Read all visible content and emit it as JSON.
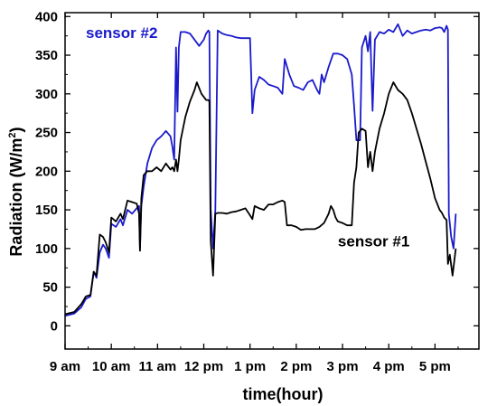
{
  "chart_data": {
    "type": "line",
    "xlabel": "time(hour)",
    "ylabel": "Radiation (W/m",
    "ylabel_sup": "2",
    "ylabel_suffix": ")",
    "xlim": [
      9.0,
      17.95
    ],
    "ylim": [
      -30,
      405
    ],
    "x_ticks": [
      {
        "value": 9,
        "label": "9 am"
      },
      {
        "value": 10,
        "label": "10 am"
      },
      {
        "value": 11,
        "label": "11 am"
      },
      {
        "value": 12,
        "label": "12 pm"
      },
      {
        "value": 13,
        "label": "1 pm"
      },
      {
        "value": 14,
        "label": "2 pm"
      },
      {
        "value": 15,
        "label": "3 pm"
      },
      {
        "value": 16,
        "label": "4 pm"
      },
      {
        "value": 17,
        "label": "5 pm"
      }
    ],
    "y_ticks": [
      0,
      50,
      100,
      150,
      200,
      250,
      300,
      350,
      400
    ],
    "grid": false,
    "series": [
      {
        "name": "sensor #2",
        "color": "#1a1acc",
        "points": [
          [
            9.0,
            13
          ],
          [
            9.2,
            16
          ],
          [
            9.35,
            24
          ],
          [
            9.45,
            35
          ],
          [
            9.55,
            38
          ],
          [
            9.62,
            70
          ],
          [
            9.68,
            62
          ],
          [
            9.75,
            95
          ],
          [
            9.82,
            105
          ],
          [
            9.88,
            100
          ],
          [
            9.95,
            88
          ],
          [
            10.0,
            132
          ],
          [
            10.1,
            128
          ],
          [
            10.2,
            138
          ],
          [
            10.25,
            130
          ],
          [
            10.35,
            150
          ],
          [
            10.45,
            145
          ],
          [
            10.55,
            152
          ],
          [
            10.6,
            155
          ],
          [
            10.62,
            100
          ],
          [
            10.65,
            155
          ],
          [
            10.7,
            180
          ],
          [
            10.78,
            210
          ],
          [
            10.88,
            230
          ],
          [
            10.98,
            240
          ],
          [
            11.08,
            245
          ],
          [
            11.18,
            252
          ],
          [
            11.28,
            245
          ],
          [
            11.32,
            232
          ],
          [
            11.36,
            215
          ],
          [
            11.4,
            360
          ],
          [
            11.43,
            277
          ],
          [
            11.46,
            360
          ],
          [
            11.5,
            380
          ],
          [
            11.6,
            380
          ],
          [
            11.7,
            378
          ],
          [
            11.8,
            370
          ],
          [
            11.9,
            362
          ],
          [
            12.0,
            370
          ],
          [
            12.05,
            378
          ],
          [
            12.1,
            382
          ],
          [
            12.12,
            380
          ],
          [
            12.15,
            150
          ],
          [
            12.2,
            100
          ],
          [
            12.25,
            150
          ],
          [
            12.3,
            382
          ],
          [
            12.4,
            378
          ],
          [
            12.5,
            376
          ],
          [
            12.6,
            375
          ],
          [
            12.7,
            373
          ],
          [
            12.8,
            372
          ],
          [
            12.9,
            372
          ],
          [
            13.0,
            372
          ],
          [
            13.05,
            275
          ],
          [
            13.1,
            305
          ],
          [
            13.2,
            322
          ],
          [
            13.3,
            318
          ],
          [
            13.4,
            312
          ],
          [
            13.5,
            310
          ],
          [
            13.6,
            308
          ],
          [
            13.7,
            300
          ],
          [
            13.75,
            345
          ],
          [
            13.85,
            325
          ],
          [
            13.95,
            310
          ],
          [
            14.05,
            308
          ],
          [
            14.15,
            305
          ],
          [
            14.25,
            315
          ],
          [
            14.35,
            318
          ],
          [
            14.45,
            305
          ],
          [
            14.5,
            300
          ],
          [
            14.55,
            325
          ],
          [
            14.6,
            315
          ],
          [
            14.7,
            335
          ],
          [
            14.8,
            352
          ],
          [
            14.9,
            352
          ],
          [
            15.0,
            350
          ],
          [
            15.1,
            345
          ],
          [
            15.2,
            325
          ],
          [
            15.25,
            285
          ],
          [
            15.3,
            240
          ],
          [
            15.38,
            240
          ],
          [
            15.42,
            360
          ],
          [
            15.5,
            375
          ],
          [
            15.55,
            355
          ],
          [
            15.6,
            380
          ],
          [
            15.65,
            278
          ],
          [
            15.7,
            370
          ],
          [
            15.8,
            380
          ],
          [
            15.9,
            378
          ],
          [
            16.0,
            383
          ],
          [
            16.1,
            380
          ],
          [
            16.2,
            390
          ],
          [
            16.3,
            375
          ],
          [
            16.4,
            382
          ],
          [
            16.5,
            378
          ],
          [
            16.6,
            380
          ],
          [
            16.7,
            382
          ],
          [
            16.8,
            383
          ],
          [
            16.9,
            382
          ],
          [
            17.0,
            385
          ],
          [
            17.1,
            386
          ],
          [
            17.15,
            385
          ],
          [
            17.2,
            380
          ],
          [
            17.25,
            388
          ],
          [
            17.28,
            383
          ],
          [
            17.3,
            145
          ],
          [
            17.35,
            115
          ],
          [
            17.4,
            100
          ],
          [
            17.45,
            145
          ]
        ]
      },
      {
        "name": "sensor #1",
        "color": "#000000",
        "points": [
          [
            9.0,
            15
          ],
          [
            9.2,
            18
          ],
          [
            9.35,
            28
          ],
          [
            9.45,
            38
          ],
          [
            9.55,
            40
          ],
          [
            9.62,
            70
          ],
          [
            9.68,
            65
          ],
          [
            9.75,
            118
          ],
          [
            9.82,
            115
          ],
          [
            9.88,
            108
          ],
          [
            9.95,
            95
          ],
          [
            10.0,
            140
          ],
          [
            10.1,
            135
          ],
          [
            10.2,
            145
          ],
          [
            10.25,
            138
          ],
          [
            10.35,
            162
          ],
          [
            10.45,
            160
          ],
          [
            10.55,
            158
          ],
          [
            10.6,
            145
          ],
          [
            10.62,
            97
          ],
          [
            10.65,
            165
          ],
          [
            10.7,
            195
          ],
          [
            10.78,
            200
          ],
          [
            10.88,
            200
          ],
          [
            10.98,
            205
          ],
          [
            11.08,
            200
          ],
          [
            11.18,
            210
          ],
          [
            11.28,
            202
          ],
          [
            11.32,
            205
          ],
          [
            11.36,
            200
          ],
          [
            11.4,
            215
          ],
          [
            11.43,
            200
          ],
          [
            11.46,
            215
          ],
          [
            11.5,
            240
          ],
          [
            11.6,
            270
          ],
          [
            11.7,
            290
          ],
          [
            11.8,
            305
          ],
          [
            11.85,
            315
          ],
          [
            11.95,
            300
          ],
          [
            12.05,
            292
          ],
          [
            12.1,
            292
          ],
          [
            12.12,
            290
          ],
          [
            12.15,
            110
          ],
          [
            12.2,
            65
          ],
          [
            12.25,
            145
          ],
          [
            12.3,
            146
          ],
          [
            12.4,
            146
          ],
          [
            12.5,
            145
          ],
          [
            12.6,
            147
          ],
          [
            12.7,
            148
          ],
          [
            12.8,
            150
          ],
          [
            12.9,
            152
          ],
          [
            13.0,
            143
          ],
          [
            13.05,
            138
          ],
          [
            13.1,
            155
          ],
          [
            13.2,
            152
          ],
          [
            13.3,
            150
          ],
          [
            13.4,
            157
          ],
          [
            13.5,
            157
          ],
          [
            13.6,
            160
          ],
          [
            13.7,
            162
          ],
          [
            13.75,
            160
          ],
          [
            13.8,
            130
          ],
          [
            13.9,
            130
          ],
          [
            14.0,
            128
          ],
          [
            14.1,
            124
          ],
          [
            14.2,
            125
          ],
          [
            14.3,
            125
          ],
          [
            14.4,
            125
          ],
          [
            14.5,
            128
          ],
          [
            14.6,
            133
          ],
          [
            14.7,
            145
          ],
          [
            14.75,
            155
          ],
          [
            14.8,
            150
          ],
          [
            14.85,
            140
          ],
          [
            14.9,
            135
          ],
          [
            15.0,
            133
          ],
          [
            15.1,
            130
          ],
          [
            15.2,
            130
          ],
          [
            15.25,
            185
          ],
          [
            15.3,
            205
          ],
          [
            15.35,
            250
          ],
          [
            15.42,
            255
          ],
          [
            15.5,
            252
          ],
          [
            15.55,
            205
          ],
          [
            15.6,
            225
          ],
          [
            15.65,
            200
          ],
          [
            15.7,
            225
          ],
          [
            15.8,
            255
          ],
          [
            15.9,
            275
          ],
          [
            16.0,
            300
          ],
          [
            16.1,
            315
          ],
          [
            16.2,
            305
          ],
          [
            16.3,
            300
          ],
          [
            16.4,
            292
          ],
          [
            16.5,
            275
          ],
          [
            16.6,
            255
          ],
          [
            16.7,
            235
          ],
          [
            16.8,
            212
          ],
          [
            16.9,
            190
          ],
          [
            17.0,
            165
          ],
          [
            17.1,
            150
          ],
          [
            17.15,
            146
          ],
          [
            17.2,
            140
          ],
          [
            17.25,
            137
          ],
          [
            17.28,
            80
          ],
          [
            17.32,
            92
          ],
          [
            17.38,
            65
          ],
          [
            17.45,
            100
          ]
        ]
      }
    ],
    "annotations": [
      {
        "text": "sensor #2",
        "color": "#1a1acc",
        "x": 9.45,
        "y": 372
      },
      {
        "text": "sensor #1",
        "color": "#000000",
        "x": 14.9,
        "y": 103
      }
    ]
  }
}
